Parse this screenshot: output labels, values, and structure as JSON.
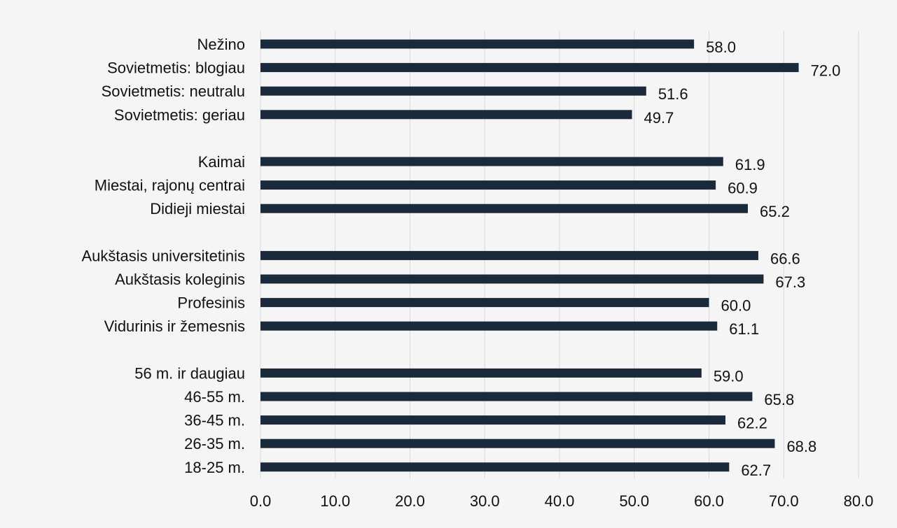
{
  "chart_data": {
    "type": "bar",
    "orientation": "horizontal",
    "categories": [
      "Nežino",
      "Sovietmetis: blogiau",
      "Sovietmetis: neutralu",
      "Sovietmetis: geriau",
      "",
      "Kaimai",
      "Miestai, rajonų centrai",
      "Didieji miestai",
      "",
      "Aukštasis universitetinis",
      "Aukštasis koleginis",
      "Profesinis",
      "Vidurinis ir žemesnis",
      "",
      "56 m. ir daugiau",
      "46-55 m.",
      "36-45 m.",
      "26-35 m.",
      "18-25 m."
    ],
    "values": [
      58.0,
      72.0,
      51.6,
      49.7,
      null,
      61.9,
      60.9,
      65.2,
      null,
      66.6,
      67.3,
      60.0,
      61.1,
      null,
      59.0,
      65.8,
      62.2,
      68.8,
      62.7
    ],
    "value_labels": [
      "58.0",
      "72.0",
      "51.6",
      "49.7",
      "",
      "61.9",
      "60.9",
      "65.2",
      "",
      "66.6",
      "67.3",
      "60.0",
      "61.1",
      "",
      "59.0",
      "65.8",
      "62.2",
      "68.8",
      "62.7"
    ],
    "xlim": [
      0,
      80
    ],
    "x_ticks": [
      0,
      10,
      20,
      30,
      40,
      50,
      60,
      70,
      80
    ],
    "x_tick_labels": [
      "0.0",
      "10.0",
      "20.0",
      "30.0",
      "40.0",
      "50.0",
      "60.0",
      "70.0",
      "80.0"
    ],
    "grid": "vertical",
    "legend": "none",
    "title": "",
    "xlabel": "",
    "ylabel": "",
    "colors": {
      "bar": "#1b2a3a",
      "grid": "#d9d9d9",
      "background": "#f5f5f5",
      "text": "#111111"
    }
  }
}
